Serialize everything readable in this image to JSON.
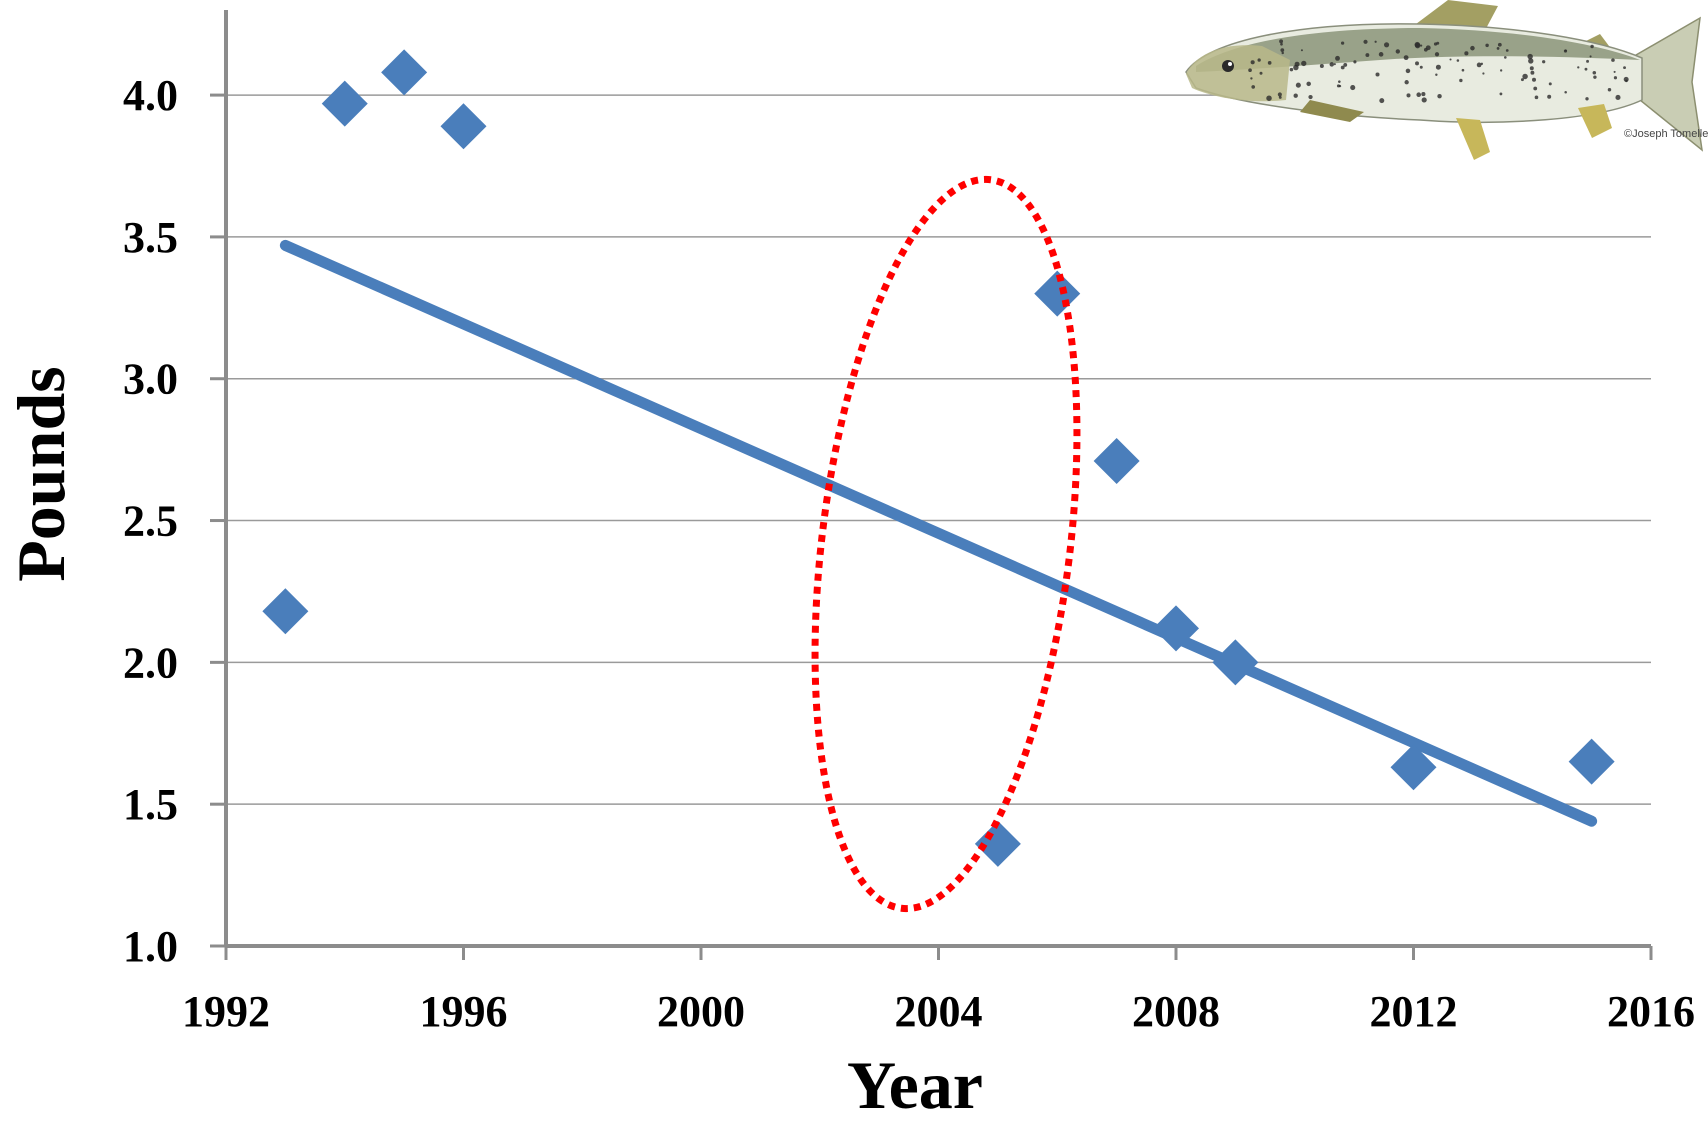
{
  "chart_data": {
    "type": "scatter",
    "xlabel": "Year",
    "ylabel": "Pounds",
    "xlim": [
      1992,
      2016
    ],
    "ylim": [
      1.0,
      4.3
    ],
    "x_ticks": [
      "1992",
      "1996",
      "2000",
      "2004",
      "2008",
      "2012",
      "2016"
    ],
    "y_ticks": [
      "1.0",
      "1.5",
      "2.0",
      "2.5",
      "3.0",
      "3.5",
      "4.0"
    ],
    "grid": "horizontal",
    "legend": "none",
    "series": [
      {
        "marker": "diamond",
        "color": "#4a7ebb",
        "x": [
          1993,
          1994,
          1995,
          1996,
          2005,
          2006,
          2007,
          2008,
          2009,
          2012,
          2015
        ],
        "y": [
          2.18,
          3.97,
          4.08,
          3.89,
          1.36,
          3.3,
          2.71,
          2.12,
          2.0,
          1.63,
          1.65
        ]
      }
    ],
    "trendline": {
      "color": "#4a7ebb",
      "x": [
        1993,
        2015
      ],
      "y": [
        3.47,
        1.44
      ]
    },
    "annotation": {
      "shape": "dotted-ellipse",
      "color": "#ff0000",
      "encloses_x": [
        2005,
        2006,
        2007
      ]
    }
  },
  "image": {
    "subject": "salmon-illustration",
    "credit": "©Joseph Tomelleri"
  }
}
